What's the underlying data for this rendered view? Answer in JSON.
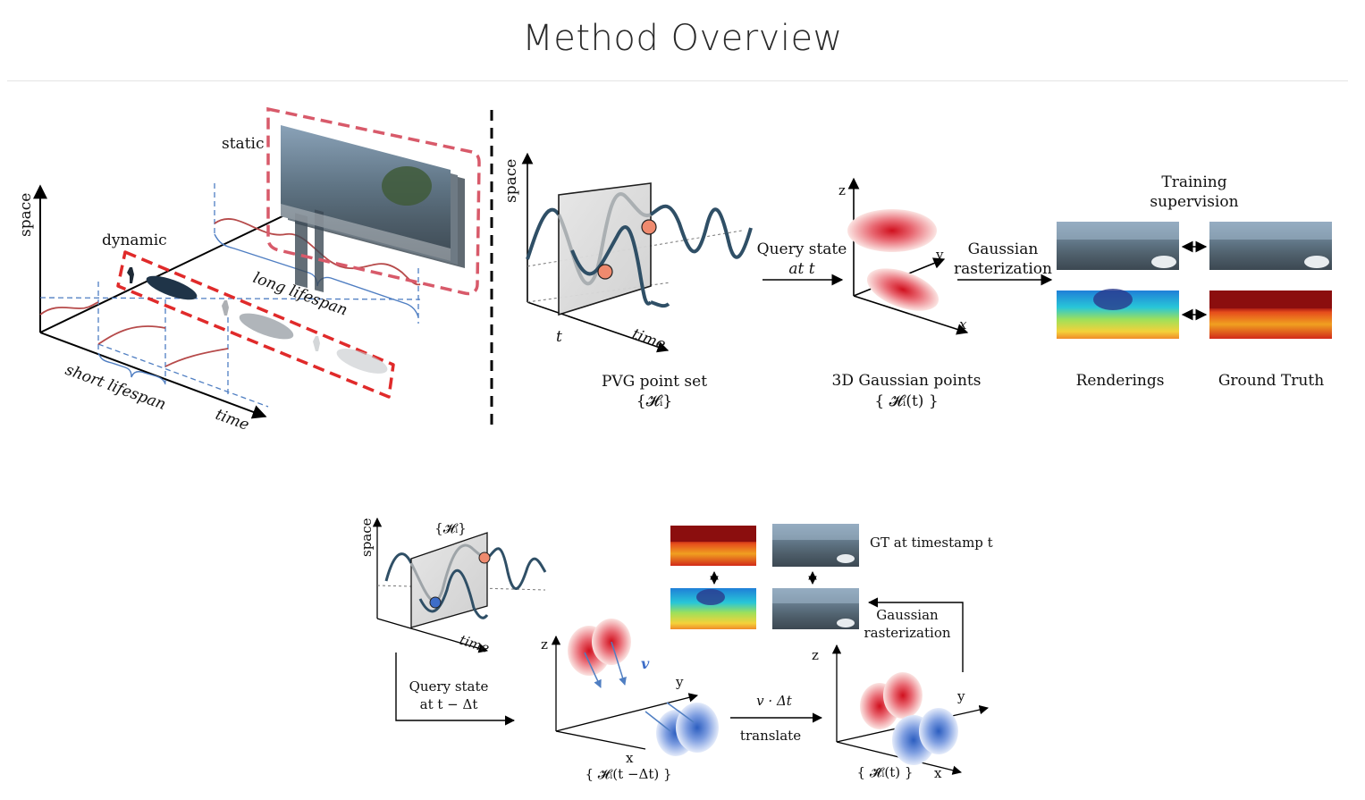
{
  "page": {
    "title": "Method Overview"
  },
  "top_left": {
    "axis_space": "space",
    "axis_time": "time",
    "label_static": "static",
    "label_dynamic": "dynamic",
    "label_long_lifespan": "long lifespan",
    "label_short_lifespan": "short lifespan"
  },
  "top_middle": {
    "axis_space": "space",
    "axis_time": "time",
    "tick_t": "t",
    "caption_line1": "PVG point set",
    "caption_line2": "{𝓗ᵢ}",
    "query_line1": "Query state",
    "query_line2": "at t"
  },
  "top_gaussian": {
    "axis_z": "z",
    "axis_y": "y",
    "axis_x": "x",
    "caption_line1": "3D Gaussian points",
    "caption_line2": "{ 𝓗ᵢ(t) }",
    "raster_line1": "Gaussian",
    "raster_line2": "rasterization"
  },
  "top_right": {
    "training_line1": "Training",
    "training_line2": "supervision",
    "caption_renderings": "Renderings",
    "caption_ground_truth": "Ground Truth"
  },
  "bottom": {
    "set_label": "{𝓗ᵢ}",
    "axis_space": "space",
    "axis_time": "time",
    "query_line1": "Query state",
    "query_line2": "at t − Δt",
    "axis_z1": "z",
    "axis_y1": "y",
    "axis_x1": "x",
    "velocity": "v",
    "set_prev": "{ 𝓗ᵢ(t −Δt) }",
    "vdt": "v · Δt",
    "translate": "translate",
    "axis_z2": "z",
    "axis_y2": "y",
    "axis_x2": "x",
    "set_hat": "{ 𝓗̂ᵢ(t) }",
    "gt_label": "GT at timestamp t",
    "raster_line1": "Gaussian",
    "raster_line2": "rasterization"
  },
  "colors": {
    "dynamic_box": "#e02a2a",
    "static_box": "#d85a6a",
    "curve_red": "#b64a4a",
    "curve_dark": "#2f4f66",
    "dash_blue": "#4f7ec2",
    "gauss_red": "#d8202c",
    "gauss_blue": "#3d6dc8",
    "point_orange": "#ef8a6e"
  }
}
